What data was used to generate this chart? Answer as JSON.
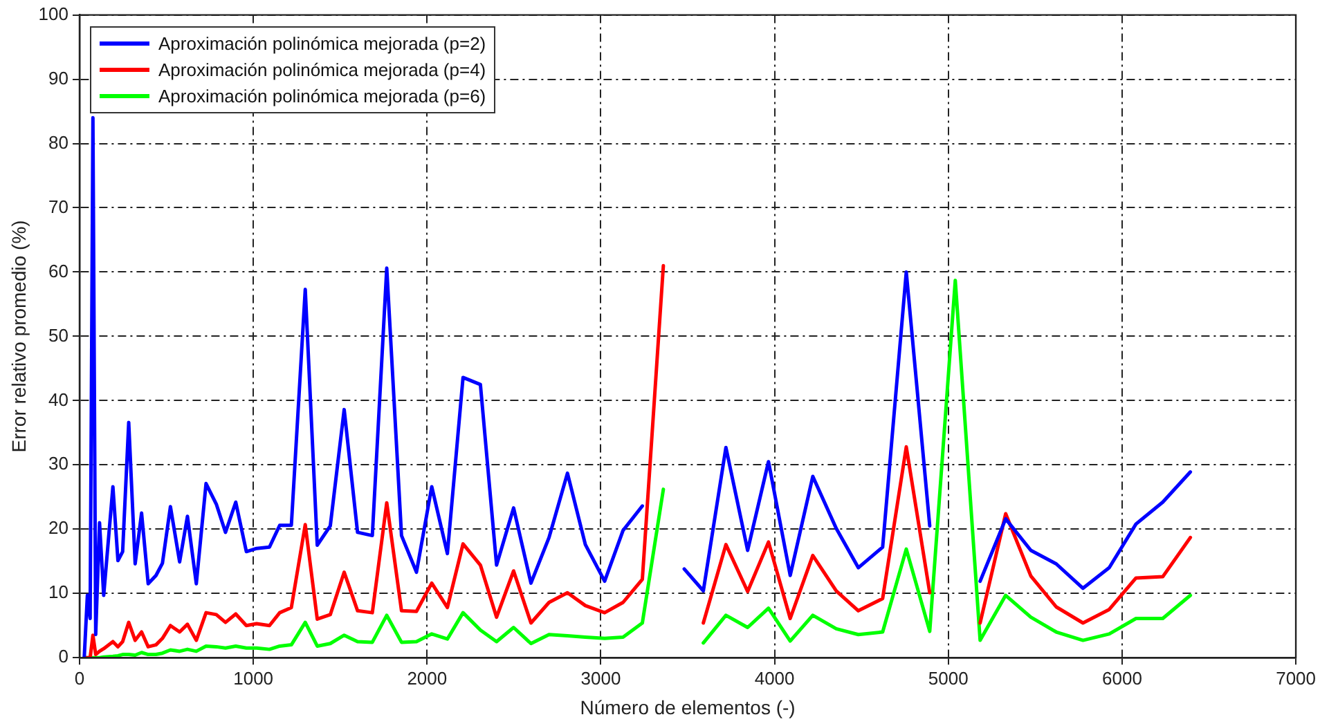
{
  "chart_data": {
    "type": "line",
    "xlabel": "Número de elementos (-)",
    "ylabel": "Error relativo promedio (%)",
    "x": [
      27,
      45,
      61,
      77,
      93,
      115,
      139,
      192,
      221,
      248,
      283,
      320,
      357,
      395,
      440,
      477,
      523,
      576,
      621,
      672,
      728,
      787,
      840,
      899,
      960,
      1019,
      1093,
      1152,
      1219,
      1299,
      1368,
      1443,
      1523,
      1600,
      1685,
      1768,
      1853,
      1939,
      2027,
      2117,
      2207,
      2307,
      2400,
      2498,
      2598,
      2702,
      2808,
      2911,
      3022,
      3128,
      3239,
      3360,
      3480,
      3590,
      3720,
      3845,
      3965,
      4090,
      4220,
      4355,
      4482,
      4622,
      4758,
      4893,
      5040,
      5183,
      5330,
      5475,
      5621,
      5775,
      5926,
      6080,
      6234,
      6393
    ],
    "series": [
      {
        "name": "Aproximación polinómica mejorada (p=2)",
        "color": "#0000ff",
        "values": [
          0,
          9.7,
          6.1,
          84,
          3.6,
          21,
          9.7,
          26.6,
          15.1,
          16.5,
          36.6,
          14.6,
          22.5,
          11.5,
          12.8,
          14.7,
          23.5,
          14.9,
          22,
          11.5,
          27.1,
          23.9,
          19.5,
          24.2,
          16.5,
          17,
          17.2,
          20.6,
          20.6,
          57.3,
          17.5,
          20.5,
          38.6,
          19.5,
          19,
          60.6,
          19,
          13.3,
          26.6,
          16.2,
          43.6,
          42.5,
          14.4,
          23.3,
          11.6,
          18.7,
          28.7,
          17.6,
          11.9,
          19.8,
          23.6,
          null,
          13.8,
          10.4,
          32.7,
          16.7,
          30.5,
          12.8,
          28.2,
          20.1,
          14,
          17.2,
          60,
          20.5,
          null,
          11.9,
          21.6,
          16.7,
          14.6,
          10.8,
          14,
          20.8,
          24.2,
          28.9
        ]
      },
      {
        "name": "Aproximación polinómica mejorada (p=4)",
        "color": "#ff0000",
        "values": [
          0,
          0,
          0,
          3.5,
          0.5,
          1,
          1.4,
          2.5,
          1.7,
          2.5,
          5.5,
          2.7,
          4,
          1.7,
          2,
          3,
          5,
          4,
          5.2,
          2.7,
          7,
          6.7,
          5.5,
          6.8,
          5,
          5.3,
          5,
          7,
          7.8,
          20.7,
          6,
          6.7,
          13.3,
          7.3,
          7,
          24.1,
          7.3,
          7.2,
          11.6,
          7.8,
          17.7,
          14.4,
          6.3,
          13.5,
          5.4,
          8.6,
          10.1,
          8.1,
          7,
          8.6,
          12.2,
          61,
          null,
          5.4,
          17.6,
          10.3,
          18,
          6.1,
          15.9,
          10.4,
          7.3,
          9.2,
          32.8,
          10.1,
          null,
          5.4,
          22.4,
          12.7,
          7.9,
          5.4,
          7.5,
          12.4,
          12.6,
          18.7
        ]
      },
      {
        "name": "Aproximación polinómica mejorada (p=6)",
        "color": "#00ff00",
        "values": [
          0,
          0,
          0,
          0,
          0,
          0,
          0.1,
          0.2,
          0.3,
          0.5,
          0.5,
          0.4,
          0.8,
          0.5,
          0.5,
          0.7,
          1.2,
          1,
          1.3,
          1,
          1.8,
          1.7,
          1.5,
          1.8,
          1.5,
          1.5,
          1.3,
          1.8,
          2,
          5.5,
          1.8,
          2.2,
          3.5,
          2.5,
          2.4,
          6.6,
          2.4,
          2.5,
          3.7,
          2.9,
          7,
          4.3,
          2.5,
          4.7,
          2.2,
          3.6,
          3.4,
          3.2,
          3,
          3.2,
          5.4,
          26.2,
          null,
          2.3,
          6.6,
          4.7,
          7.7,
          2.6,
          6.6,
          4.5,
          3.6,
          4,
          16.9,
          4.1,
          58.7,
          2.7,
          9.7,
          6.3,
          4,
          2.7,
          3.7,
          6.1,
          6.1,
          9.7
        ]
      }
    ],
    "xlim": [
      0,
      7000
    ],
    "xticks": [
      0,
      1000,
      2000,
      3000,
      4000,
      5000,
      6000,
      7000
    ],
    "ylim": [
      0,
      100
    ],
    "yticks": [
      0,
      10,
      20,
      30,
      40,
      50,
      60,
      70,
      80,
      90,
      100
    ],
    "grid": true,
    "legend": "top left",
    "marker": "none",
    "line_style": "solid"
  }
}
